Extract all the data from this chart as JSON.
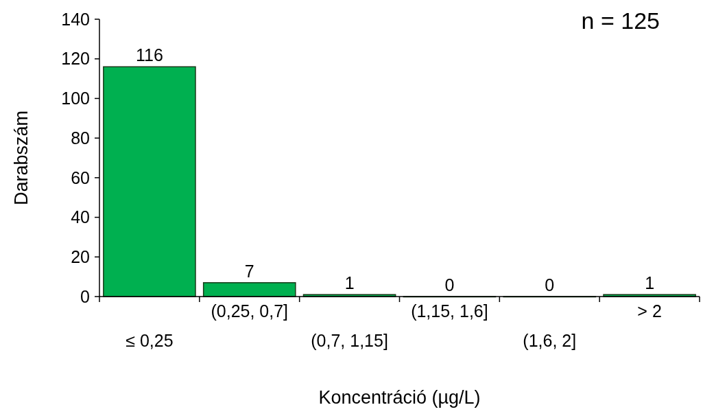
{
  "chart_data": {
    "type": "bar",
    "xlabel": "Koncentráció (µg/L)",
    "ylabel": "Darabszám",
    "categories": [
      "≤ 0,25",
      "(0,25, 0,7]",
      "(0,7, 1,15]",
      "(1,15, 1,6]",
      "(1,6, 2]",
      "> 2"
    ],
    "values": [
      116,
      7,
      1,
      0,
      0,
      1
    ],
    "color": "#00b050",
    "ylim": [
      0,
      140
    ],
    "yticks": [
      0,
      20,
      40,
      60,
      80,
      100,
      120,
      140
    ],
    "data_labels": true,
    "grid": false,
    "annotations": [
      "n = 125"
    ]
  }
}
